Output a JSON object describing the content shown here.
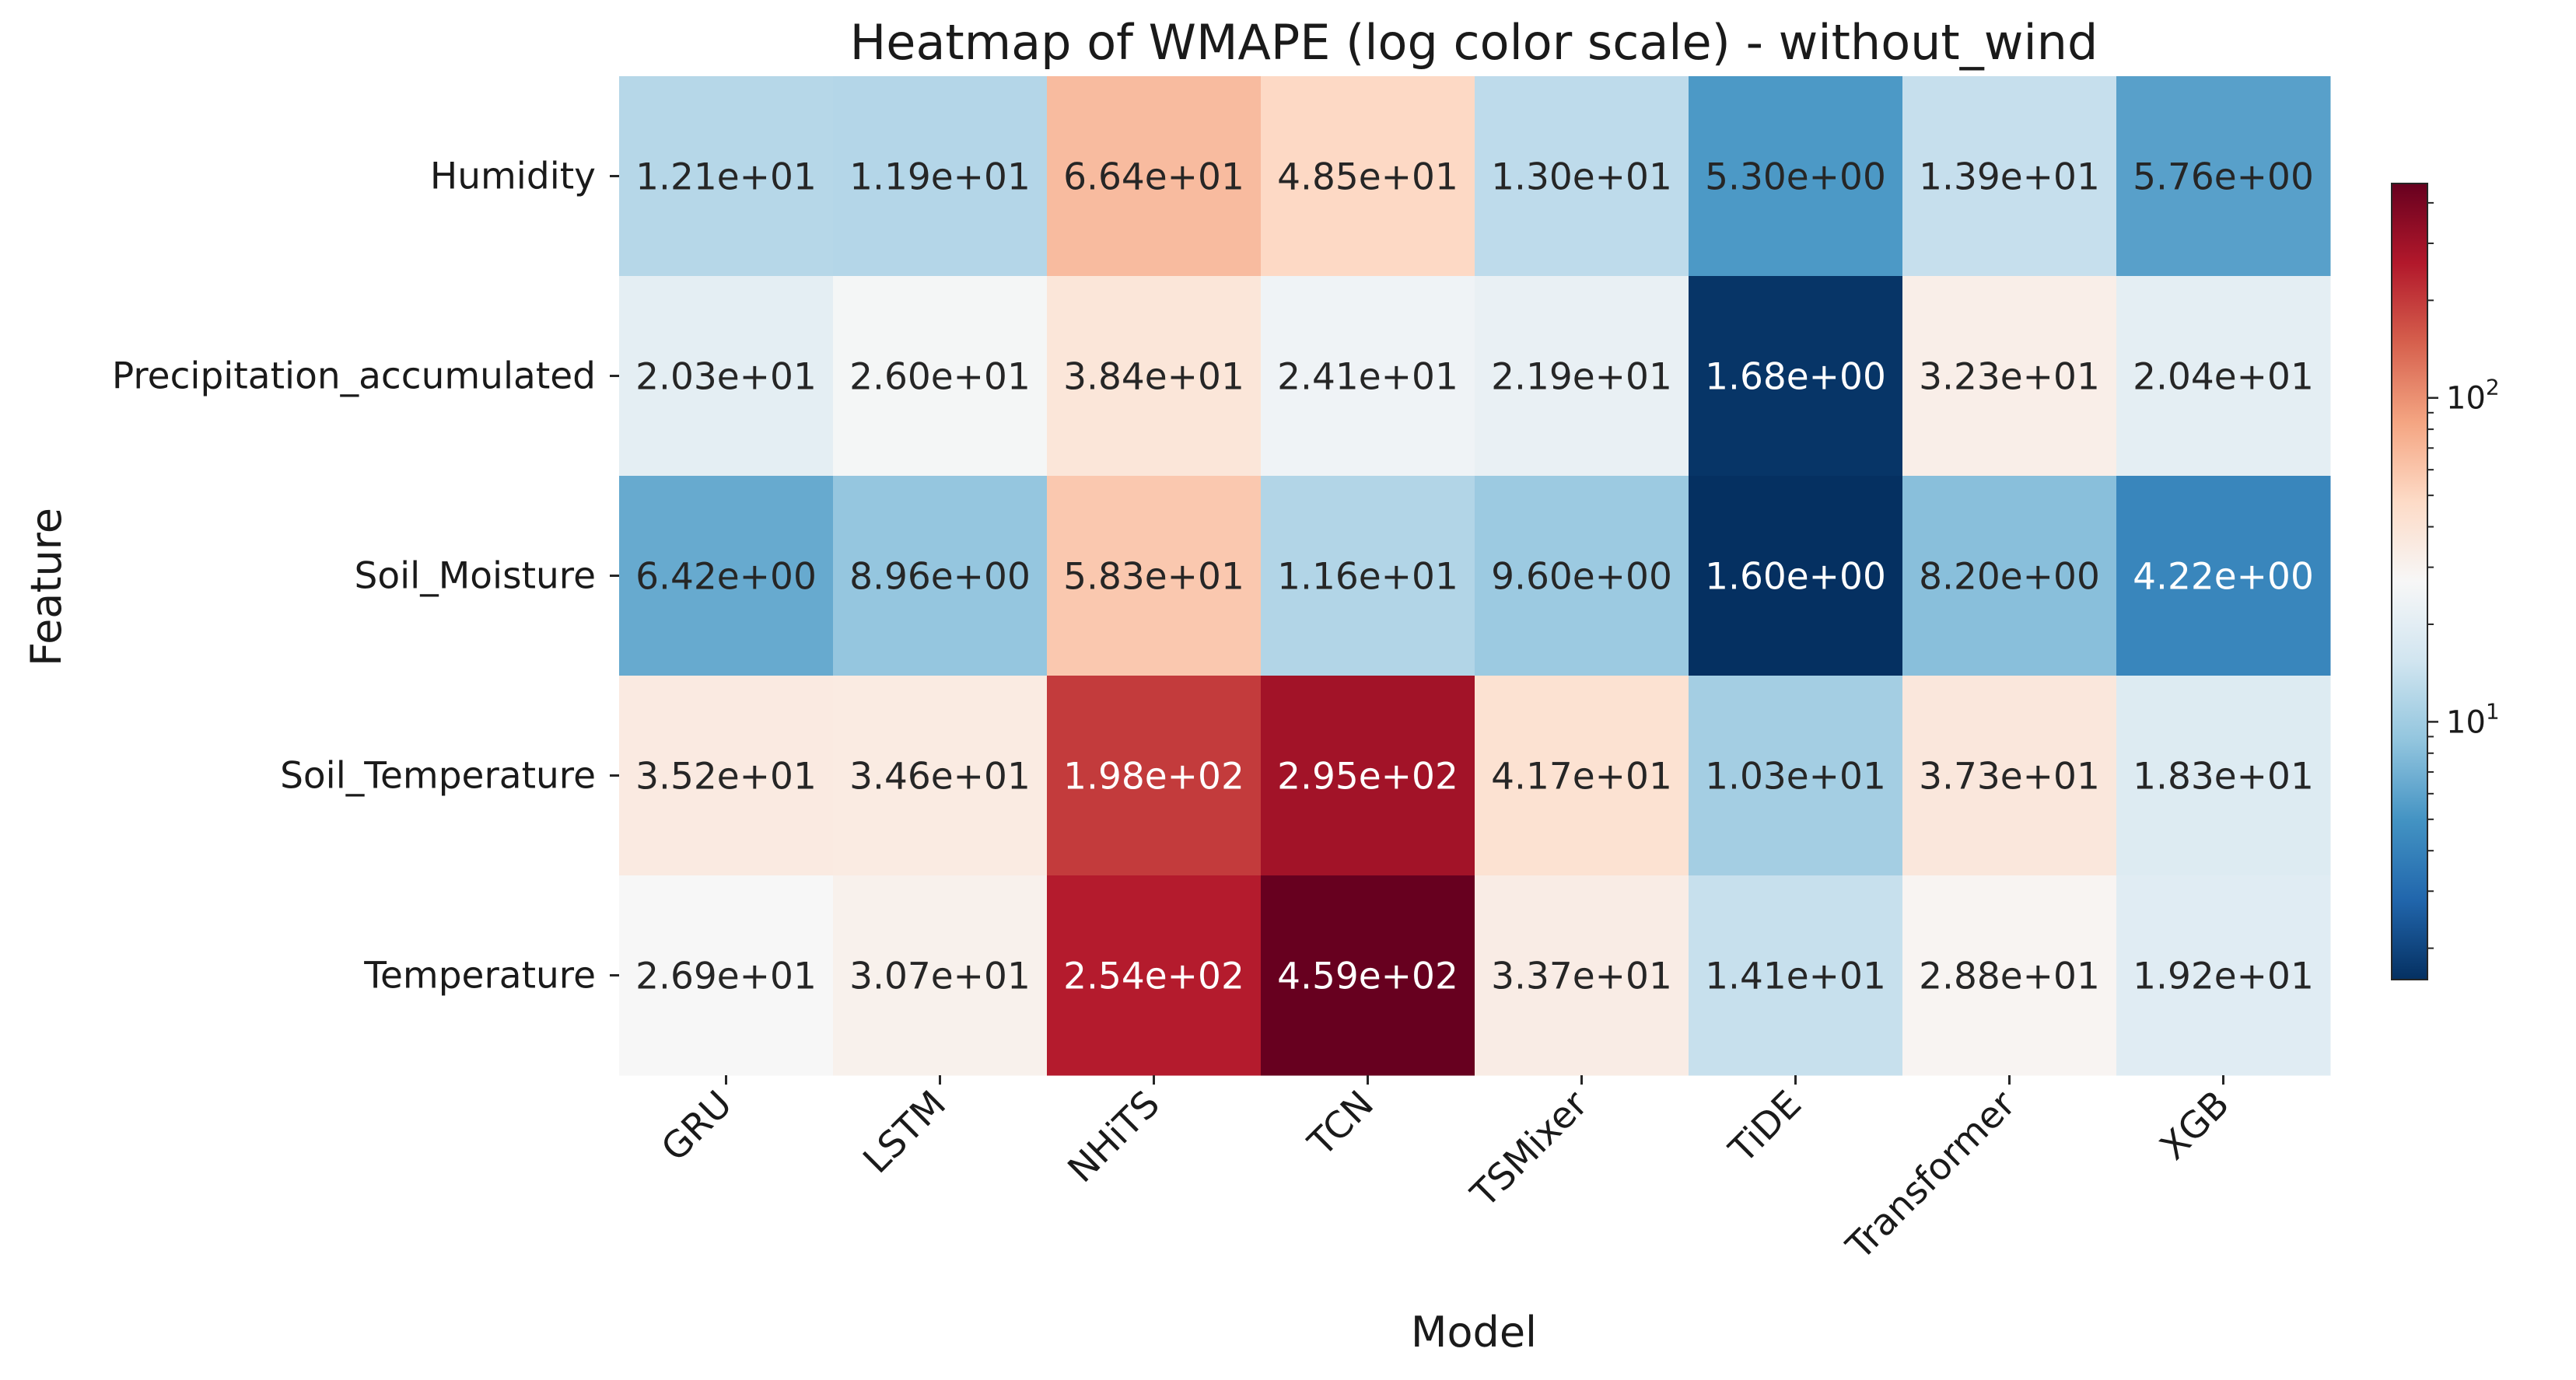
{
  "chart_data": {
    "type": "heatmap",
    "title": "Heatmap of WMAPE (log color scale) - without_wind",
    "xlabel": "Model",
    "ylabel": "Feature",
    "x_categories": [
      "GRU",
      "LSTM",
      "NHiTS",
      "TCN",
      "TSMixer",
      "TiDE",
      "Transformer",
      "XGB"
    ],
    "y_categories": [
      "Humidity",
      "Precipitation_accumulated",
      "Soil_Moisture",
      "Soil_Temperature",
      "Temperature"
    ],
    "values": [
      [
        12.1,
        11.9,
        66.4,
        48.5,
        13.0,
        5.3,
        13.9,
        5.76
      ],
      [
        20.3,
        26.0,
        38.4,
        24.1,
        21.9,
        1.68,
        32.3,
        20.4
      ],
      [
        6.42,
        8.96,
        58.3,
        11.6,
        9.6,
        1.6,
        8.2,
        4.22
      ],
      [
        35.2,
        34.6,
        198,
        295,
        41.7,
        10.3,
        37.3,
        18.3
      ],
      [
        26.9,
        30.7,
        254,
        459,
        33.7,
        14.1,
        28.8,
        19.2
      ]
    ],
    "cell_labels": [
      [
        "1.21e+01",
        "1.19e+01",
        "6.64e+01",
        "4.85e+01",
        "1.30e+01",
        "5.30e+00",
        "1.39e+01",
        "5.76e+00"
      ],
      [
        "2.03e+01",
        "2.60e+01",
        "3.84e+01",
        "2.41e+01",
        "2.19e+01",
        "1.68e+00",
        "3.23e+01",
        "2.04e+01"
      ],
      [
        "6.42e+00",
        "8.96e+00",
        "5.83e+01",
        "1.16e+01",
        "9.60e+00",
        "1.60e+00",
        "8.20e+00",
        "4.22e+00"
      ],
      [
        "3.52e+01",
        "3.46e+01",
        "1.98e+02",
        "2.95e+02",
        "4.17e+01",
        "1.03e+01",
        "3.73e+01",
        "1.83e+01"
      ],
      [
        "2.69e+01",
        "3.07e+01",
        "2.54e+02",
        "4.59e+02",
        "3.37e+01",
        "1.41e+01",
        "2.88e+01",
        "1.92e+01"
      ]
    ],
    "colorbar": {
      "scale": "log",
      "colormap": "RdBu_r",
      "range": [
        1.6,
        459
      ],
      "major_ticks": [
        10,
        100
      ],
      "major_tick_labels": [
        {
          "base": "10",
          "exp": "1"
        },
        {
          "base": "10",
          "exp": "2"
        }
      ]
    }
  }
}
